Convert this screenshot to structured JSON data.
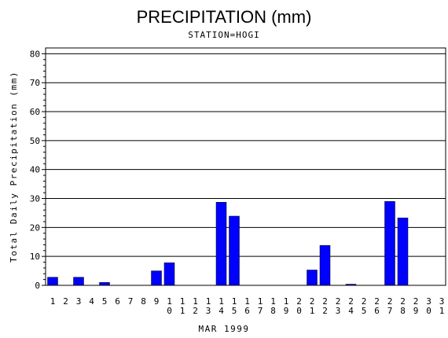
{
  "chart_data": {
    "type": "bar",
    "title": "PRECIPITATION (mm)",
    "subtitle": "STATION=HOGI",
    "xlabel": "MAR 1999",
    "ylabel": "Total Daily Precipitation (mm)",
    "ylim": [
      0,
      82
    ],
    "yticks": [
      0,
      10,
      20,
      30,
      40,
      50,
      60,
      70,
      80
    ],
    "grid": true,
    "bar_color": "#0000ff",
    "categories": [
      "1",
      "2",
      "3",
      "4",
      "5",
      "6",
      "7",
      "8",
      "9",
      "10",
      "11",
      "12",
      "13",
      "14",
      "15",
      "16",
      "17",
      "18",
      "19",
      "20",
      "21",
      "22",
      "23",
      "24",
      "25",
      "26",
      "27",
      "28",
      "29",
      "30",
      "31"
    ],
    "values": [
      2.8,
      0,
      2.8,
      0,
      1.0,
      0,
      0,
      0,
      5.0,
      7.8,
      0,
      0,
      0,
      28.7,
      23.9,
      0,
      0,
      0,
      0,
      0,
      5.3,
      13.8,
      0,
      0.4,
      0,
      0,
      29.0,
      23.3,
      0,
      0,
      0
    ]
  }
}
